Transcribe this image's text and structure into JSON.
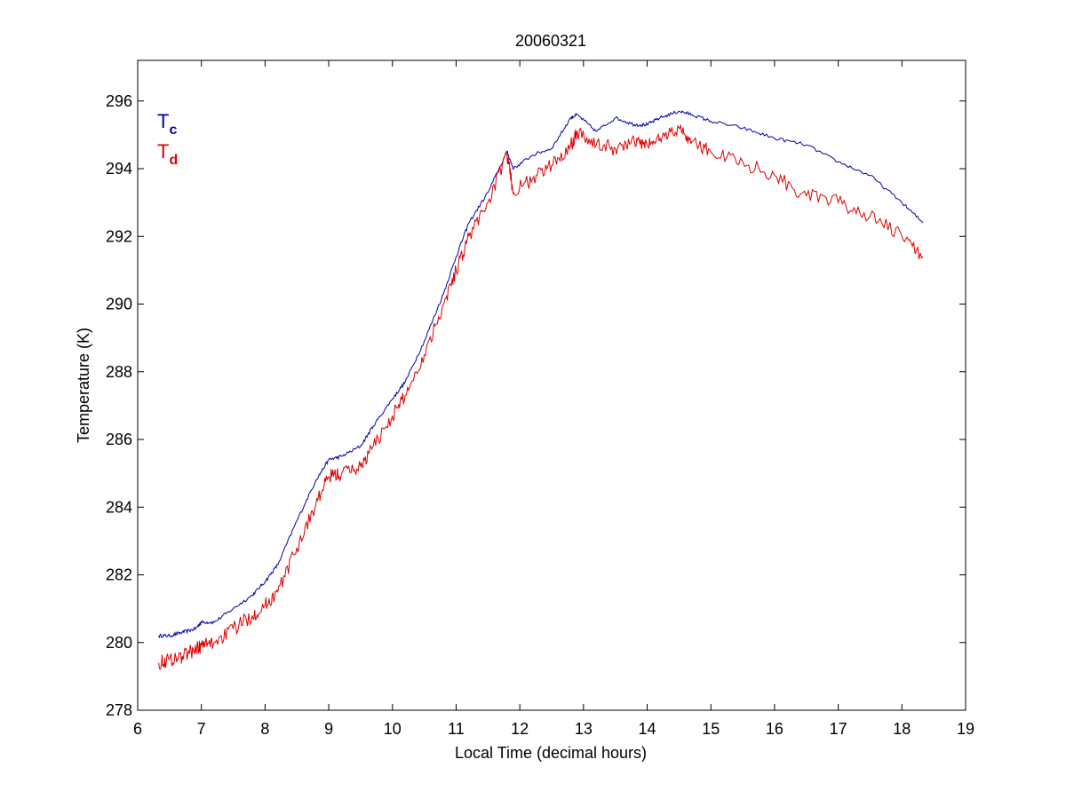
{
  "chart_data": {
    "type": "line",
    "title": "20060321",
    "xlabel": "Local Time (decimal hours)",
    "ylabel": "Temperature (K)",
    "xlim": [
      6,
      19
    ],
    "ylim": [
      278,
      297.2
    ],
    "xticks": [
      6,
      7,
      8,
      9,
      10,
      11,
      12,
      13,
      14,
      15,
      16,
      17,
      18,
      19
    ],
    "yticks": [
      278,
      280,
      282,
      284,
      286,
      288,
      290,
      292,
      294,
      296
    ],
    "grid": false,
    "legend_position": "top-left",
    "series": [
      {
        "name": "Tc",
        "legend_main": "T",
        "legend_sub": "c",
        "color": "#0000aa",
        "x": [
          6.33,
          6.5,
          6.7,
          6.9,
          7.0,
          7.2,
          7.5,
          7.8,
          8.0,
          8.2,
          8.5,
          8.8,
          9.0,
          9.2,
          9.5,
          9.7,
          10.0,
          10.2,
          10.5,
          10.8,
          11.0,
          11.2,
          11.5,
          11.8,
          11.9,
          12.2,
          12.5,
          12.8,
          12.9,
          13.2,
          13.5,
          13.8,
          14.0,
          14.2,
          14.5,
          14.7,
          15.0,
          15.5,
          16.0,
          16.5,
          17.0,
          17.5,
          18.0,
          18.33
        ],
        "values": [
          280.2,
          280.2,
          280.3,
          280.4,
          280.6,
          280.6,
          281.0,
          281.4,
          281.8,
          282.3,
          283.6,
          284.8,
          285.4,
          285.5,
          285.8,
          286.4,
          287.2,
          287.7,
          288.9,
          290.3,
          291.4,
          292.4,
          293.3,
          294.5,
          294.0,
          294.4,
          294.6,
          295.5,
          295.6,
          295.1,
          295.5,
          295.3,
          295.3,
          295.5,
          295.7,
          295.6,
          295.4,
          295.2,
          294.9,
          294.7,
          294.2,
          293.8,
          293.0,
          292.4
        ]
      },
      {
        "name": "Td",
        "legend_main": "T",
        "legend_sub": "d",
        "color": "#dd0000",
        "x": [
          6.33,
          6.5,
          6.7,
          6.9,
          7.0,
          7.2,
          7.5,
          7.8,
          8.0,
          8.2,
          8.5,
          8.8,
          9.0,
          9.2,
          9.5,
          9.7,
          10.0,
          10.2,
          10.5,
          10.8,
          11.0,
          11.2,
          11.5,
          11.8,
          11.9,
          12.2,
          12.5,
          12.8,
          12.9,
          13.2,
          13.5,
          13.8,
          14.0,
          14.2,
          14.5,
          14.7,
          15.0,
          15.5,
          16.0,
          16.5,
          17.0,
          17.5,
          18.0,
          18.33
        ],
        "values": [
          279.4,
          279.5,
          279.6,
          279.8,
          279.9,
          280.0,
          280.4,
          280.8,
          281.1,
          281.5,
          282.8,
          284.1,
          284.9,
          285.0,
          285.2,
          285.8,
          286.7,
          287.3,
          288.5,
          290.0,
          291.0,
          292.0,
          293.0,
          294.4,
          293.3,
          293.7,
          294.1,
          294.7,
          295.1,
          294.7,
          294.6,
          294.8,
          294.7,
          294.9,
          295.2,
          294.8,
          294.5,
          294.2,
          293.8,
          293.2,
          293.0,
          292.6,
          292.0,
          291.4
        ]
      }
    ]
  }
}
